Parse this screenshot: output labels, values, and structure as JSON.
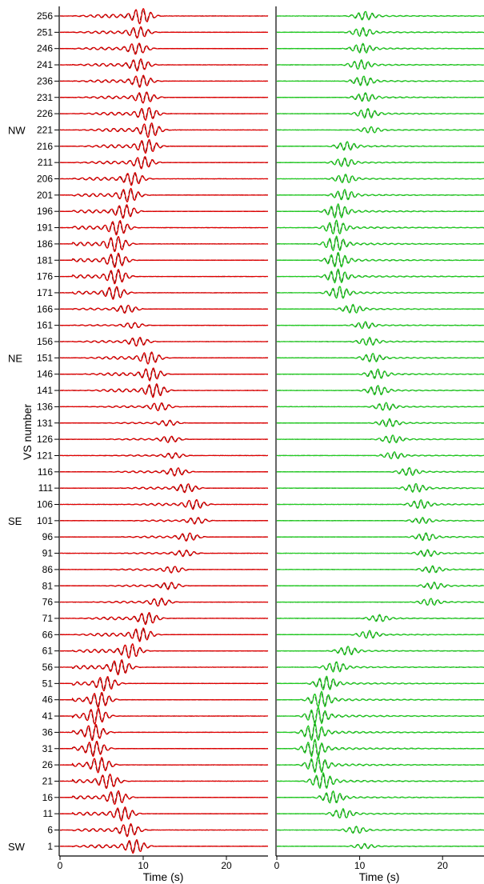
{
  "chart_data": [
    {
      "type": "line",
      "panel": "left",
      "trace_color": "#e00000",
      "overlay_color": "#000000",
      "xlabel": "Time (s)",
      "ylabel": "VS number",
      "xlim": [
        0,
        25
      ],
      "x_ticks": [
        0,
        10,
        20
      ],
      "row_labels": [
        256,
        251,
        246,
        241,
        236,
        231,
        226,
        221,
        216,
        211,
        206,
        201,
        196,
        191,
        186,
        181,
        176,
        171,
        166,
        161,
        156,
        151,
        146,
        141,
        136,
        131,
        126,
        121,
        116,
        111,
        106,
        101,
        96,
        91,
        86,
        81,
        76,
        71,
        66,
        61,
        56,
        51,
        46,
        41,
        36,
        31,
        26,
        21,
        16,
        11,
        6,
        1
      ],
      "direction_labels": [
        {
          "text": "NW",
          "at_row": 221
        },
        {
          "text": "NE",
          "at_row": 151
        },
        {
          "text": "SE",
          "at_row": 101
        },
        {
          "text": "SW",
          "at_row": 1
        }
      ],
      "arrival_time_s": [
        9.8,
        9.5,
        9.3,
        9.5,
        9.8,
        10.2,
        10.5,
        10.8,
        10.5,
        10.0,
        8.8,
        8.3,
        7.8,
        7.0,
        6.8,
        6.8,
        6.8,
        6.6,
        8.0,
        8.8,
        9.4,
        10.8,
        11.0,
        11.4,
        12.0,
        13.0,
        13.2,
        13.7,
        14.0,
        15.2,
        16.2,
        16.4,
        15.4,
        15.0,
        13.6,
        13.2,
        12.0,
        10.5,
        9.8,
        8.5,
        7.2,
        5.5,
        4.8,
        4.4,
        4.1,
        4.2,
        4.8,
        5.8,
        6.8,
        7.6,
        8.3,
        9.0
      ],
      "peak_amplitude": [
        0.95,
        0.7,
        0.7,
        0.75,
        0.75,
        0.7,
        0.8,
        0.9,
        0.85,
        0.75,
        0.8,
        0.85,
        0.85,
        0.9,
        0.95,
        0.9,
        0.9,
        0.8,
        0.5,
        0.35,
        0.55,
        0.75,
        0.8,
        0.85,
        0.5,
        0.35,
        0.4,
        0.35,
        0.5,
        0.55,
        0.6,
        0.4,
        0.5,
        0.4,
        0.4,
        0.45,
        0.5,
        0.75,
        0.85,
        0.9,
        0.95,
        0.9,
        0.95,
        1.0,
        1.0,
        0.95,
        0.95,
        0.9,
        0.85,
        0.85,
        0.8,
        0.85
      ]
    },
    {
      "type": "line",
      "panel": "right",
      "trace_color": "#22cc22",
      "overlay_color": "#000000",
      "xlabel": "Time (s)",
      "ylabel": "",
      "xlim": [
        0,
        25
      ],
      "x_ticks": [
        0,
        10,
        20
      ],
      "arrival_time_s": [
        10.5,
        10.2,
        10.2,
        10.0,
        10.3,
        10.5,
        10.8,
        11.2,
        8.3,
        8.0,
        8.1,
        8.0,
        7.2,
        7.0,
        7.0,
        7.2,
        7.2,
        7.4,
        9.0,
        10.5,
        11.0,
        11.4,
        12.0,
        12.0,
        13.0,
        13.4,
        13.8,
        14.0,
        15.8,
        16.6,
        17.2,
        17.4,
        17.8,
        18.0,
        18.6,
        18.8,
        18.4,
        12.2,
        11.0,
        8.4,
        7.0,
        5.8,
        5.2,
        4.8,
        4.4,
        4.4,
        4.8,
        5.4,
        6.6,
        7.8,
        9.4,
        10.4
      ],
      "peak_amplitude": [
        0.5,
        0.5,
        0.55,
        0.55,
        0.55,
        0.5,
        0.55,
        0.35,
        0.5,
        0.5,
        0.5,
        0.6,
        0.8,
        0.8,
        0.85,
        0.85,
        0.8,
        0.7,
        0.5,
        0.4,
        0.45,
        0.5,
        0.55,
        0.55,
        0.45,
        0.45,
        0.45,
        0.4,
        0.45,
        0.5,
        0.5,
        0.35,
        0.45,
        0.4,
        0.4,
        0.4,
        0.4,
        0.4,
        0.45,
        0.5,
        0.6,
        0.8,
        0.9,
        0.95,
        1.0,
        1.0,
        0.95,
        0.9,
        0.7,
        0.55,
        0.4,
        0.3
      ]
    }
  ]
}
